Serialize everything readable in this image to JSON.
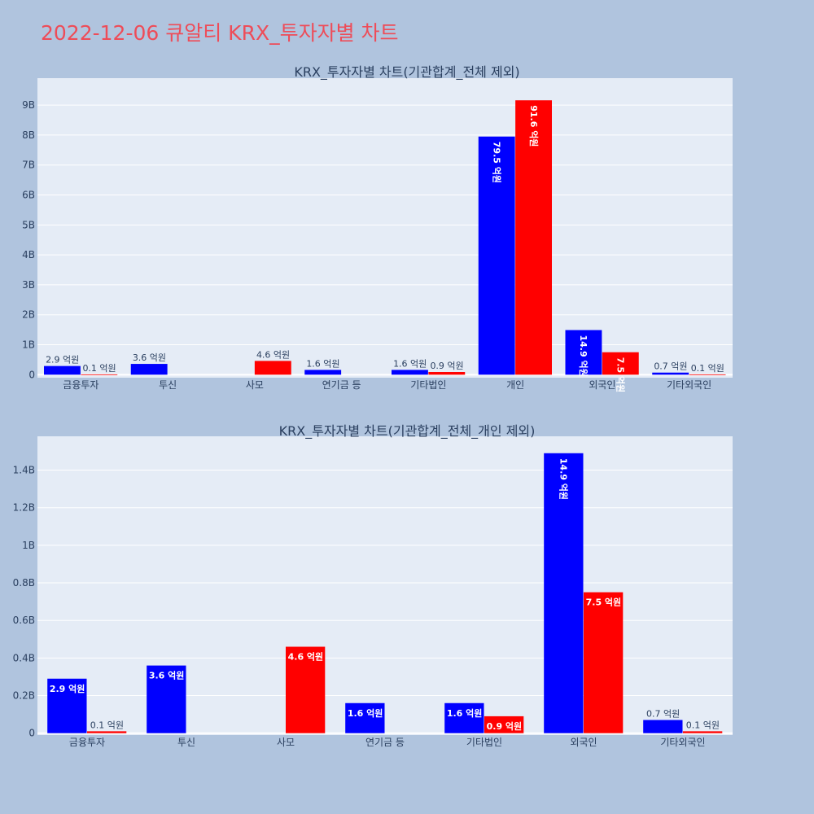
{
  "title": "2022-12-06 큐알티 KRX_투자자별 차트",
  "colors": {
    "buy": "#0000ff",
    "sell": "#ff0000",
    "plot_bg": "#e5ecf6",
    "paper_bg": "#b0c4de",
    "title": "#ee4c58"
  },
  "chart_data": [
    {
      "type": "bar",
      "title": "KRX_투자자별 차트(기관합계_전체 제외)",
      "categories": [
        "금융투자",
        "투신",
        "사모",
        "연기금 등",
        "기타법인",
        "개인",
        "외국인",
        "기타외국인"
      ],
      "series": [
        {
          "values": [
            0.29,
            0.36,
            0,
            0.16,
            0.16,
            7.95,
            1.49,
            0.07
          ],
          "labels": [
            "2.9 억원",
            "3.6 억원",
            "",
            "1.6 억원",
            "1.6 억원",
            "79.5 억원",
            "14.9 억원",
            "0.7 억원"
          ]
        },
        {
          "values": [
            0.01,
            0,
            0.46,
            0,
            0.09,
            9.16,
            0.75,
            0.01
          ],
          "labels": [
            "0.1 억원",
            "",
            "4.6 억원",
            "",
            "0.9 억원",
            "91.6 억원",
            "7.5 억원",
            "0.1 억원"
          ]
        }
      ],
      "ylim": [
        -0.1,
        9.9
      ],
      "yticks": [
        0,
        1,
        2,
        3,
        4,
        5,
        6,
        7,
        8,
        9
      ],
      "ytick_labels": [
        "0",
        "1B",
        "2B",
        "3B",
        "4B",
        "5B",
        "6B",
        "7B",
        "8B",
        "9B"
      ],
      "grid": true
    },
    {
      "type": "bar",
      "title": "KRX_투자자별 차트(기관합계_전체_개인 제외)",
      "categories": [
        "금융투자",
        "투신",
        "사모",
        "연기금 등",
        "기타법인",
        "외국인",
        "기타외국인"
      ],
      "series": [
        {
          "values": [
            0.29,
            0.36,
            0,
            0.16,
            0.16,
            1.49,
            0.07
          ],
          "labels": [
            "2.9 억원",
            "3.6 억원",
            "",
            "1.6 억원",
            "1.6 억원",
            "14.9 억원",
            "0.7 억원"
          ]
        },
        {
          "values": [
            0.01,
            0,
            0.46,
            0,
            0.09,
            0.75,
            0.01
          ],
          "labels": [
            "0.1 억원",
            "",
            "4.6 억원",
            "",
            "0.9 억원",
            "7.5 억원",
            "0.1 억원"
          ]
        }
      ],
      "ylim": [
        -0.01,
        1.58
      ],
      "yticks": [
        0,
        0.2,
        0.4,
        0.6,
        0.8,
        1.0,
        1.2,
        1.4
      ],
      "ytick_labels": [
        "0",
        "0.2B",
        "0.4B",
        "0.6B",
        "0.8B",
        "1B",
        "1.2B",
        "1.4B"
      ],
      "grid": true
    }
  ]
}
